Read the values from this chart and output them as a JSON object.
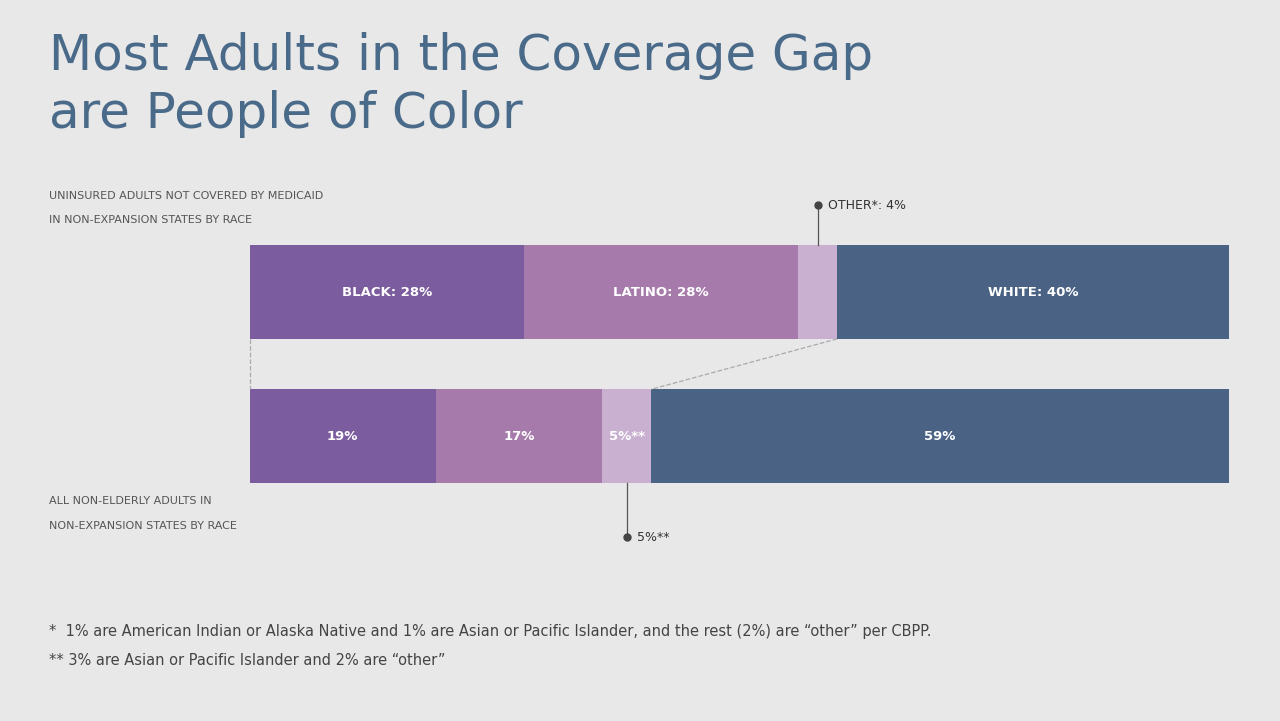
{
  "title_line1": "Most Adults in the Coverage Gap",
  "title_line2": "are People of Color",
  "title_color": "#4a6a8a",
  "title_fontsize": 36,
  "bg_color": "#e8e8e8",
  "bar1_label_line1": "UNINSURED ADULTS NOT COVERED BY MEDICAID",
  "bar1_label_line2": "IN NON-EXPANSION STATES BY RACE",
  "bar1_segments": [
    {
      "label": "BLACK: 28%",
      "value": 28,
      "color": "#7b5c9e"
    },
    {
      "label": "LATINO: 28%",
      "value": 28,
      "color": "#a67aaa"
    },
    {
      "label": "OTHER*: 4%",
      "value": 4,
      "color": "#c9afd0"
    },
    {
      "label": "WHITE: 40%",
      "value": 40,
      "color": "#4a6385"
    }
  ],
  "bar2_label_line1": "ALL NON-ELDERLY ADULTS IN",
  "bar2_label_line2": "NON-EXPANSION STATES BY RACE",
  "bar2_segments": [
    {
      "label": "19%",
      "value": 19,
      "color": "#7b5c9e"
    },
    {
      "label": "17%",
      "value": 17,
      "color": "#a67aaa"
    },
    {
      "label": "5%**",
      "value": 5,
      "color": "#c9afd0"
    },
    {
      "label": "59%",
      "value": 59,
      "color": "#4a6385"
    }
  ],
  "footnote1": "*  1% are American Indian or Alaska Native and 1% are Asian or Pacific Islander, and the rest (2%) are “other” per CBPP.",
  "footnote2": "** 3% are Asian or Pacific Islander and 2% are “other”",
  "footnote_fontsize": 10.5,
  "footnote_color": "#444444"
}
